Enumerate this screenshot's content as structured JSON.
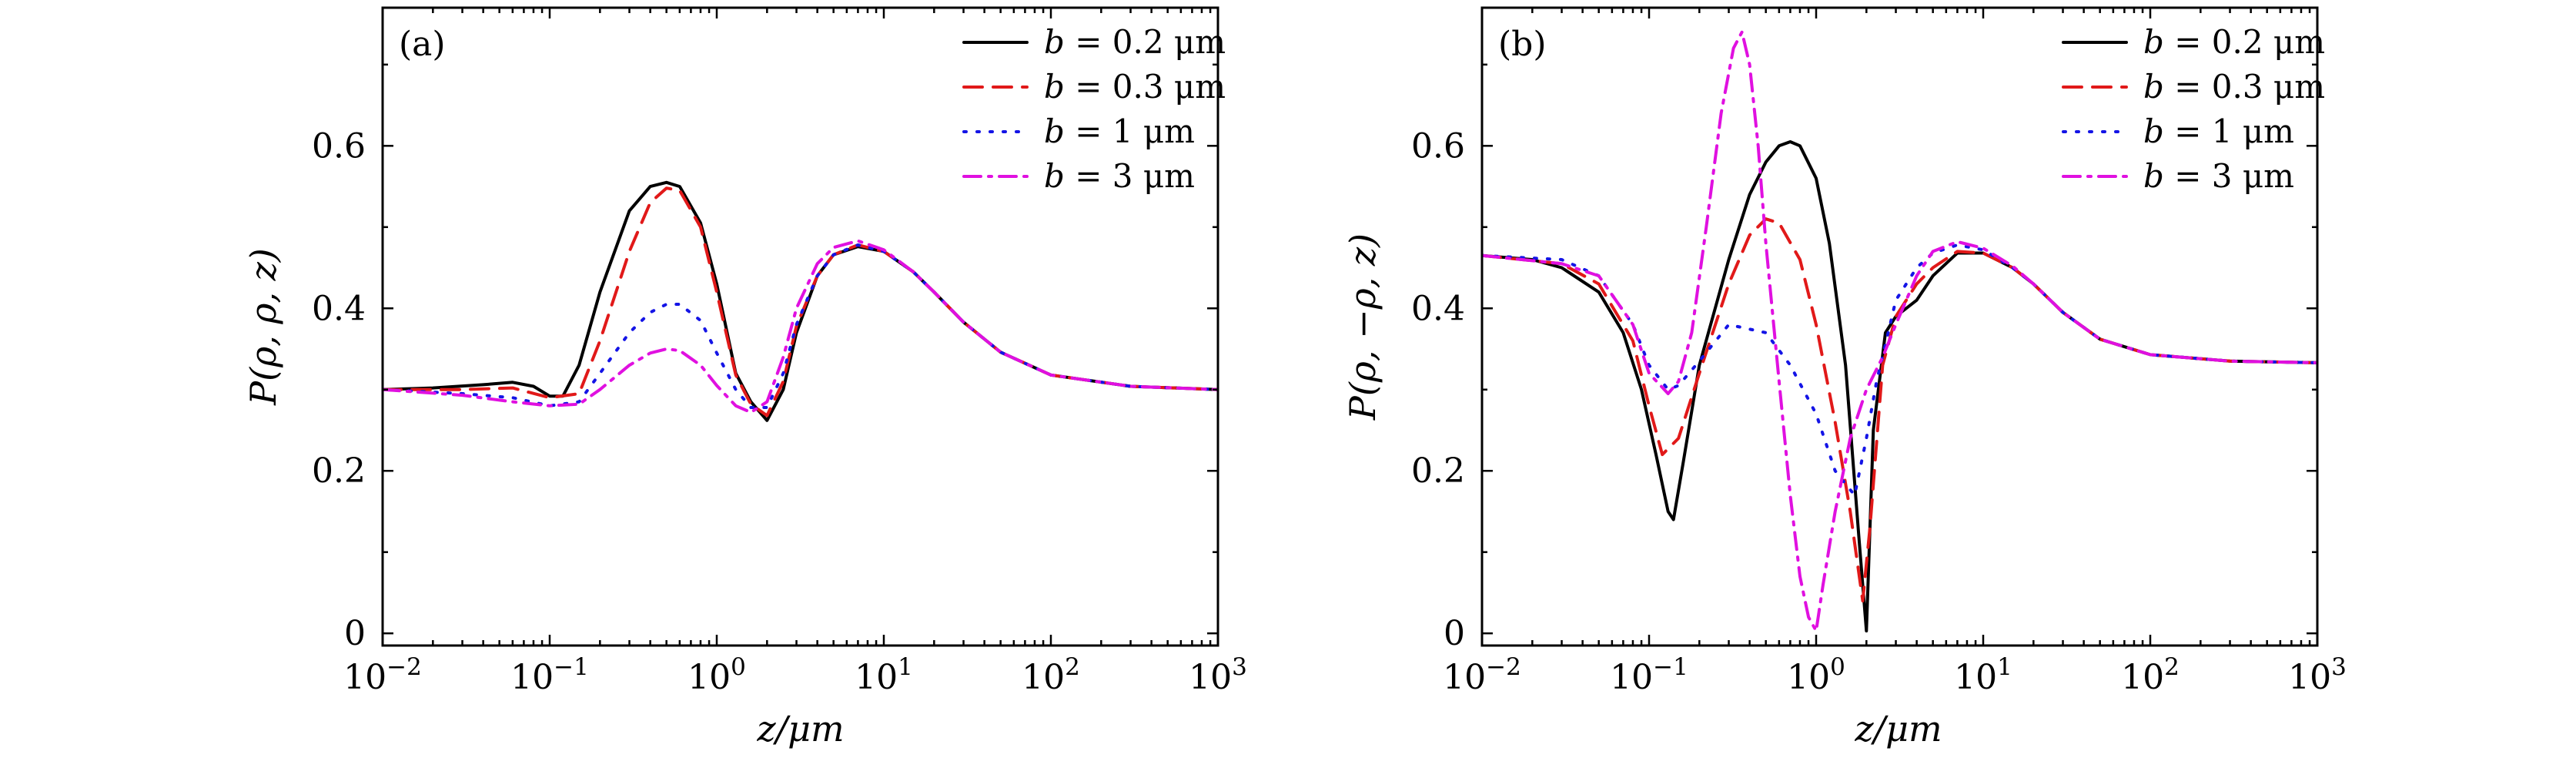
{
  "chart_data": [
    {
      "id": "a",
      "type": "line",
      "panel_label": "(a)",
      "xlabel": "z/μm",
      "ylabel": "P(ρ, ρ, z)",
      "xscale": "log",
      "xlim": [
        0.01,
        1000
      ],
      "ylim": [
        -0.015,
        0.77
      ],
      "x_ticks": [
        {
          "value": 0.01,
          "base": "10",
          "exp": "−2"
        },
        {
          "value": 0.1,
          "base": "10",
          "exp": "−1"
        },
        {
          "value": 1,
          "base": "10",
          "exp": "0"
        },
        {
          "value": 10,
          "base": "10",
          "exp": "1"
        },
        {
          "value": 100,
          "base": "10",
          "exp": "2"
        },
        {
          "value": 1000,
          "base": "10",
          "exp": "3"
        }
      ],
      "y_ticks": [
        {
          "value": 0,
          "label": "0"
        },
        {
          "value": 0.2,
          "label": "0.2"
        },
        {
          "value": 0.4,
          "label": "0.4"
        },
        {
          "value": 0.6,
          "label": "0.6"
        }
      ],
      "legend_position": "top-right",
      "series": [
        {
          "name": "b = 0.2 μm",
          "b": "b",
          "label": " = 0.2 μm",
          "color": "#000000",
          "dash": "",
          "x": [
            0.01,
            0.02,
            0.04,
            0.06,
            0.08,
            0.1,
            0.12,
            0.15,
            0.2,
            0.3,
            0.4,
            0.5,
            0.6,
            0.8,
            1.0,
            1.3,
            1.6,
            2.0,
            2.5,
            3,
            4,
            5,
            7,
            10,
            15,
            20,
            30,
            50,
            100,
            300,
            1000
          ],
          "y": [
            0.3,
            0.302,
            0.306,
            0.309,
            0.304,
            0.292,
            0.292,
            0.33,
            0.42,
            0.52,
            0.55,
            0.555,
            0.55,
            0.505,
            0.43,
            0.32,
            0.285,
            0.262,
            0.3,
            0.37,
            0.44,
            0.466,
            0.476,
            0.47,
            0.445,
            0.42,
            0.383,
            0.346,
            0.318,
            0.304,
            0.3
          ]
        },
        {
          "name": "b = 0.3 μm",
          "b": "b",
          "label": " = 0.3 μm",
          "color": "#e11919",
          "dash": "24 14",
          "x": [
            0.01,
            0.03,
            0.06,
            0.1,
            0.15,
            0.2,
            0.3,
            0.4,
            0.5,
            0.6,
            0.8,
            1.0,
            1.3,
            1.6,
            2.0,
            2.5,
            3,
            4,
            5,
            7,
            10,
            15,
            20,
            30,
            50,
            100,
            300,
            1000
          ],
          "y": [
            0.3,
            0.3,
            0.302,
            0.29,
            0.295,
            0.36,
            0.47,
            0.53,
            0.548,
            0.545,
            0.5,
            0.42,
            0.318,
            0.282,
            0.268,
            0.31,
            0.378,
            0.44,
            0.466,
            0.478,
            0.47,
            0.445,
            0.42,
            0.383,
            0.346,
            0.318,
            0.304,
            0.3
          ]
        },
        {
          "name": "b = 1 μm",
          "b": "b",
          "label": " = 1 μm",
          "color": "#1414e6",
          "dash": "3 14",
          "x": [
            0.01,
            0.03,
            0.06,
            0.1,
            0.15,
            0.2,
            0.3,
            0.4,
            0.5,
            0.6,
            0.8,
            1.0,
            1.3,
            1.6,
            2.0,
            2.5,
            3,
            4,
            5,
            7,
            10,
            15,
            20,
            30,
            50,
            100,
            300,
            1000
          ],
          "y": [
            0.3,
            0.295,
            0.29,
            0.28,
            0.285,
            0.32,
            0.37,
            0.395,
            0.405,
            0.405,
            0.385,
            0.345,
            0.3,
            0.278,
            0.278,
            0.32,
            0.38,
            0.44,
            0.466,
            0.478,
            0.47,
            0.445,
            0.42,
            0.383,
            0.346,
            0.318,
            0.304,
            0.3
          ]
        },
        {
          "name": "b = 3 μm",
          "b": "b",
          "label": " = 3 μm",
          "color": "#e010e0",
          "dash": "22 10 4 10",
          "x": [
            0.01,
            0.03,
            0.06,
            0.1,
            0.15,
            0.2,
            0.3,
            0.4,
            0.5,
            0.6,
            0.8,
            1.0,
            1.3,
            1.6,
            2.0,
            2.5,
            3,
            4,
            5,
            7,
            10,
            15,
            20,
            30,
            50,
            100,
            300,
            1000
          ],
          "y": [
            0.3,
            0.293,
            0.285,
            0.28,
            0.282,
            0.3,
            0.33,
            0.345,
            0.35,
            0.348,
            0.33,
            0.305,
            0.28,
            0.272,
            0.285,
            0.34,
            0.4,
            0.455,
            0.475,
            0.483,
            0.472,
            0.445,
            0.42,
            0.383,
            0.346,
            0.318,
            0.304,
            0.3
          ]
        }
      ]
    },
    {
      "id": "b",
      "type": "line",
      "panel_label": "(b)",
      "xlabel": "z/μm",
      "ylabel": "P(ρ, −ρ, z)",
      "xscale": "log",
      "xlim": [
        0.01,
        1000
      ],
      "ylim": [
        -0.015,
        0.77
      ],
      "x_ticks": [
        {
          "value": 0.01,
          "base": "10",
          "exp": "−2"
        },
        {
          "value": 0.1,
          "base": "10",
          "exp": "−1"
        },
        {
          "value": 1,
          "base": "10",
          "exp": "0"
        },
        {
          "value": 10,
          "base": "10",
          "exp": "1"
        },
        {
          "value": 100,
          "base": "10",
          "exp": "2"
        },
        {
          "value": 1000,
          "base": "10",
          "exp": "3"
        }
      ],
      "y_ticks": [
        {
          "value": 0,
          "label": "0"
        },
        {
          "value": 0.2,
          "label": "0.2"
        },
        {
          "value": 0.4,
          "label": "0.4"
        },
        {
          "value": 0.6,
          "label": "0.6"
        }
      ],
      "legend_position": "top-right",
      "series": [
        {
          "name": "b = 0.2 μm",
          "b": "b",
          "label": " = 0.2 μm",
          "color": "#000000",
          "dash": "",
          "x": [
            0.01,
            0.02,
            0.03,
            0.05,
            0.07,
            0.09,
            0.11,
            0.13,
            0.14,
            0.16,
            0.2,
            0.3,
            0.4,
            0.5,
            0.6,
            0.7,
            0.8,
            1.0,
            1.2,
            1.5,
            1.8,
            2.0,
            2.2,
            2.6,
            3,
            4,
            5,
            7,
            10,
            15,
            20,
            30,
            50,
            100,
            300,
            1000
          ],
          "y": [
            0.465,
            0.46,
            0.45,
            0.42,
            0.37,
            0.3,
            0.22,
            0.15,
            0.14,
            0.21,
            0.33,
            0.46,
            0.54,
            0.58,
            0.6,
            0.605,
            0.6,
            0.56,
            0.48,
            0.33,
            0.12,
            0.003,
            0.25,
            0.37,
            0.39,
            0.41,
            0.44,
            0.468,
            0.468,
            0.45,
            0.43,
            0.395,
            0.362,
            0.343,
            0.335,
            0.333
          ]
        },
        {
          "name": "b = 0.3 μm",
          "b": "b",
          "label": " = 0.3 μm",
          "color": "#e11919",
          "dash": "24 14",
          "x": [
            0.01,
            0.03,
            0.05,
            0.08,
            0.1,
            0.12,
            0.15,
            0.2,
            0.3,
            0.4,
            0.5,
            0.6,
            0.8,
            1.0,
            1.3,
            1.6,
            1.9,
            2.1,
            2.5,
            3,
            4,
            5,
            7,
            10,
            15,
            20,
            30,
            50,
            100,
            300,
            1000
          ],
          "y": [
            0.465,
            0.455,
            0.43,
            0.36,
            0.28,
            0.22,
            0.24,
            0.32,
            0.43,
            0.49,
            0.51,
            0.505,
            0.46,
            0.38,
            0.26,
            0.15,
            0.04,
            0.13,
            0.33,
            0.39,
            0.43,
            0.45,
            0.47,
            0.468,
            0.45,
            0.43,
            0.395,
            0.362,
            0.343,
            0.335,
            0.333
          ]
        },
        {
          "name": "b = 1 μm",
          "b": "b",
          "label": " = 1 μm",
          "color": "#1414e6",
          "dash": "3 14",
          "x": [
            0.01,
            0.03,
            0.05,
            0.08,
            0.1,
            0.13,
            0.15,
            0.2,
            0.3,
            0.5,
            0.7,
            1.0,
            1.3,
            1.7,
            2.0,
            2.3,
            2.7,
            3,
            4,
            5,
            7,
            10,
            15,
            20,
            30,
            50,
            100,
            300,
            1000
          ],
          "y": [
            0.465,
            0.46,
            0.44,
            0.38,
            0.33,
            0.3,
            0.305,
            0.335,
            0.38,
            0.37,
            0.33,
            0.27,
            0.2,
            0.17,
            0.24,
            0.31,
            0.37,
            0.41,
            0.45,
            0.468,
            0.478,
            0.472,
            0.45,
            0.43,
            0.395,
            0.362,
            0.343,
            0.335,
            0.333
          ]
        },
        {
          "name": "b = 3 μm",
          "b": "b",
          "label": " = 3 μm",
          "color": "#e010e0",
          "dash": "22 10 4 10",
          "x": [
            0.01,
            0.03,
            0.05,
            0.08,
            0.1,
            0.13,
            0.15,
            0.18,
            0.22,
            0.27,
            0.32,
            0.36,
            0.4,
            0.45,
            0.5,
            0.6,
            0.7,
            0.8,
            0.9,
            1.0,
            1.1,
            1.3,
            1.6,
            2.0,
            2.5,
            3,
            4,
            5,
            7,
            10,
            15,
            20,
            30,
            50,
            100,
            300,
            1000
          ],
          "y": [
            0.465,
            0.455,
            0.44,
            0.38,
            0.32,
            0.295,
            0.31,
            0.37,
            0.5,
            0.64,
            0.72,
            0.74,
            0.7,
            0.6,
            0.48,
            0.31,
            0.17,
            0.07,
            0.02,
            0.003,
            0.06,
            0.15,
            0.24,
            0.3,
            0.34,
            0.38,
            0.44,
            0.47,
            0.482,
            0.474,
            0.452,
            0.43,
            0.395,
            0.362,
            0.343,
            0.335,
            0.333
          ]
        }
      ]
    }
  ]
}
